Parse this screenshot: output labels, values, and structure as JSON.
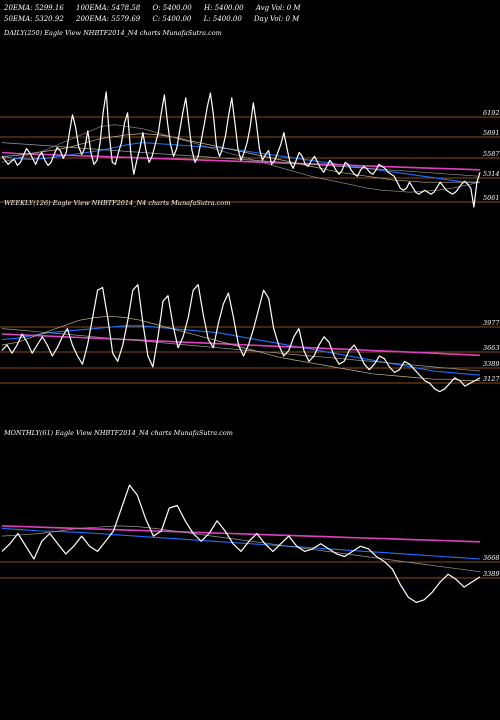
{
  "header": {
    "row1": [
      "20EMA: 5299.16",
      "100EMA: 5478.58",
      "O: 5400.00",
      "H: 5400.00",
      "Avg Vol: 0  M"
    ],
    "row2": [
      "50EMA: 5320.92",
      "200EMA: 5579.69",
      "C: 5400.00",
      "L: 5400.00",
      "Day Vol: 0  M"
    ]
  },
  "colors": {
    "background": "#000000",
    "price": "#ffffff",
    "level": "#b5651d",
    "ema_blue": "#1e6fff",
    "ema_magenta": "#e040c0",
    "ema_grey": "#9a9a9a",
    "ema_tan": "#c8b48c"
  },
  "chart_data": [
    {
      "type": "line",
      "title": "DAILY(250) Eagle  View  NHBTF2014_N4  charts MunafaSutra.com",
      "levels": [
        "6192",
        "5891",
        "5587",
        "5314",
        "5061"
      ],
      "series": [
        {
          "values": [
            5560,
            5520,
            5480,
            5510,
            5530,
            5470,
            5500,
            5570,
            5640,
            5600,
            5540,
            5480,
            5560,
            5600,
            5520,
            5470,
            5500,
            5580,
            5650,
            5620,
            5540,
            5600,
            5800,
            5980,
            5860,
            5660,
            5580,
            5640,
            5820,
            5600,
            5480,
            5520,
            5700,
            6000,
            6210,
            5780,
            5500,
            5480,
            5600,
            5700,
            5900,
            6000,
            5600,
            5380,
            5520,
            5640,
            5800,
            5620,
            5500,
            5560,
            5680,
            5800,
            6000,
            6180,
            5900,
            5680,
            5560,
            5640,
            5820,
            6000,
            6150,
            5880,
            5620,
            5500,
            5560,
            5720,
            5880,
            6060,
            6200,
            5980,
            5660,
            5560,
            5640,
            5780,
            5980,
            6150,
            5900,
            5640,
            5520,
            5600,
            5700,
            5860,
            6100,
            5900,
            5640,
            5520,
            5580,
            5620,
            5480,
            5520,
            5600,
            5680,
            5800,
            5640,
            5500,
            5440,
            5520,
            5600,
            5560,
            5480,
            5460,
            5520,
            5560,
            5500,
            5440,
            5400,
            5460,
            5520,
            5480,
            5420,
            5380,
            5420,
            5500,
            5480,
            5420,
            5380,
            5360,
            5420,
            5460,
            5440,
            5400,
            5380,
            5420,
            5480,
            5460,
            5440,
            5400,
            5380,
            5360,
            5300,
            5240,
            5220,
            5240,
            5300,
            5250,
            5200,
            5180,
            5200,
            5220,
            5200,
            5180,
            5200,
            5250,
            5300,
            5260,
            5220,
            5200,
            5180,
            5200,
            5240,
            5280,
            5310,
            5280,
            5240,
            5050,
            5300,
            5400
          ]
        },
        {
          "values": [
            5560,
            5540,
            5530,
            5540,
            5560,
            5580,
            5600,
            5620,
            5650,
            5680,
            5700,
            5690,
            5680,
            5670,
            5660,
            5650,
            5640,
            5620,
            5600,
            5580,
            5560,
            5540,
            5520,
            5500,
            5480,
            5460,
            5440,
            5420,
            5400,
            5380,
            5360,
            5340,
            5320,
            5300,
            5300
          ]
        },
        {
          "values": [
            5600,
            5590,
            5585,
            5580,
            5575,
            5570,
            5565,
            5560,
            5555,
            5550,
            5545,
            5540,
            5535,
            5530,
            5525,
            5520,
            5515,
            5510,
            5505,
            5500,
            5495,
            5490,
            5485,
            5480,
            5475,
            5470,
            5465,
            5460,
            5455,
            5450,
            5445,
            5440,
            5435,
            5430,
            5425
          ]
        },
        {
          "values": [
            5700,
            5690,
            5680,
            5670,
            5660,
            5650,
            5640,
            5630,
            5620,
            5610,
            5600,
            5590,
            5580,
            5570,
            5560,
            5550,
            5540,
            5530,
            5520,
            5510,
            5500,
            5490,
            5480,
            5470,
            5460,
            5450,
            5440,
            5430,
            5420,
            5410,
            5400,
            5390,
            5380,
            5370,
            5360
          ]
        },
        {
          "values": [
            5560,
            5570,
            5590,
            5610,
            5630,
            5660,
            5700,
            5740,
            5760,
            5780,
            5790,
            5780,
            5760,
            5730,
            5700,
            5670,
            5640,
            5610,
            5580,
            5550,
            5520,
            5490,
            5460,
            5430,
            5400,
            5380,
            5360,
            5340,
            5320,
            5310,
            5300,
            5300,
            5300,
            5300,
            5300
          ]
        },
        {
          "values": [
            5500,
            5540,
            5580,
            5620,
            5680,
            5740,
            5800,
            5860,
            5880,
            5860,
            5840,
            5800,
            5760,
            5720,
            5680,
            5640,
            5600,
            5560,
            5520,
            5480,
            5440,
            5400,
            5360,
            5330,
            5300,
            5270,
            5240,
            5220,
            5210,
            5200,
            5210,
            5220,
            5240,
            5270,
            5300
          ]
        }
      ]
    },
    {
      "type": "line",
      "title": "WEEKLY(126) Eagle  View  NHBTF2014_N4  charts MunafaSutra.com",
      "levels": [
        "3977",
        "3663",
        "3389",
        "3127"
      ],
      "series": [
        {
          "values": [
            3520,
            3560,
            3500,
            3560,
            3640,
            3580,
            3500,
            3560,
            3620,
            3560,
            3480,
            3540,
            3620,
            3680,
            3560,
            3480,
            3420,
            3560,
            3760,
            3960,
            3980,
            3760,
            3500,
            3440,
            3560,
            3740,
            3960,
            4000,
            3720,
            3480,
            3400,
            3620,
            3880,
            3920,
            3700,
            3540,
            3620,
            3760,
            3960,
            4000,
            3780,
            3600,
            3540,
            3720,
            3860,
            3940,
            3760,
            3560,
            3480,
            3560,
            3680,
            3820,
            3960,
            3900,
            3680,
            3560,
            3480,
            3520,
            3620,
            3680,
            3520,
            3440,
            3480,
            3560,
            3620,
            3580,
            3480,
            3420,
            3440,
            3520,
            3560,
            3500,
            3420,
            3380,
            3420,
            3480,
            3460,
            3400,
            3360,
            3380,
            3440,
            3420,
            3380,
            3340,
            3300,
            3280,
            3240,
            3220,
            3240,
            3280,
            3320,
            3300,
            3260,
            3280,
            3300,
            3320
          ]
        },
        {
          "values": [
            3600,
            3610,
            3630,
            3650,
            3660,
            3670,
            3680,
            3690,
            3700,
            3700,
            3690,
            3680,
            3670,
            3660,
            3650,
            3630,
            3610,
            3590,
            3570,
            3550,
            3530,
            3510,
            3490,
            3470,
            3450,
            3430,
            3410,
            3390,
            3370,
            3360,
            3350,
            3340
          ]
        },
        {
          "values": [
            3640,
            3635,
            3630,
            3625,
            3620,
            3615,
            3610,
            3605,
            3600,
            3595,
            3590,
            3585,
            3580,
            3575,
            3570,
            3565,
            3560,
            3555,
            3550,
            3545,
            3540,
            3535,
            3530,
            3525,
            3520,
            3515,
            3510,
            3505,
            3500,
            3495,
            3490,
            3485
          ]
        },
        {
          "values": [
            3680,
            3670,
            3660,
            3650,
            3640,
            3630,
            3620,
            3610,
            3600,
            3590,
            3580,
            3570,
            3560,
            3550,
            3540,
            3530,
            3520,
            3510,
            3500,
            3490,
            3480,
            3470,
            3460,
            3450,
            3440,
            3430,
            3420,
            3410,
            3400,
            3390,
            3380,
            3370
          ]
        },
        {
          "values": [
            3560,
            3580,
            3620,
            3660,
            3700,
            3740,
            3760,
            3770,
            3760,
            3740,
            3710,
            3680,
            3650,
            3620,
            3590,
            3560,
            3530,
            3500,
            3470,
            3450,
            3430,
            3410,
            3390,
            3370,
            3350,
            3340,
            3330,
            3320,
            3310,
            3310,
            3300,
            3300
          ]
        }
      ]
    },
    {
      "type": "line",
      "title": "MONTHLY(61) Eagle  View  NHBTF2014_N4  charts MunafaSutra.com",
      "levels": [
        "3668",
        "3389"
      ],
      "series": [
        {
          "values": [
            3560,
            3620,
            3700,
            3600,
            3500,
            3640,
            3700,
            3620,
            3540,
            3600,
            3680,
            3600,
            3560,
            3640,
            3720,
            3900,
            4080,
            4000,
            3820,
            3680,
            3720,
            3900,
            3920,
            3800,
            3700,
            3640,
            3700,
            3800,
            3720,
            3620,
            3560,
            3640,
            3700,
            3620,
            3560,
            3620,
            3680,
            3600,
            3560,
            3580,
            3620,
            3580,
            3540,
            3520,
            3560,
            3600,
            3580,
            3520,
            3480,
            3420,
            3300,
            3200,
            3160,
            3180,
            3240,
            3320,
            3380,
            3340,
            3280,
            3320,
            3360
          ]
        },
        {
          "values": [
            3740,
            3730,
            3720,
            3715,
            3710,
            3700,
            3690,
            3680,
            3670,
            3660,
            3650,
            3640,
            3630,
            3620,
            3610,
            3600,
            3590,
            3580,
            3570,
            3560,
            3550,
            3540,
            3530,
            3520,
            3510,
            3500
          ]
        },
        {
          "values": [
            3760,
            3755,
            3750,
            3745,
            3740,
            3735,
            3730,
            3725,
            3720,
            3715,
            3710,
            3705,
            3700,
            3695,
            3690,
            3685,
            3680,
            3675,
            3670,
            3665,
            3660,
            3655,
            3650,
            3645,
            3640,
            3635
          ]
        },
        {
          "values": [
            3680,
            3690,
            3700,
            3720,
            3740,
            3750,
            3760,
            3755,
            3740,
            3720,
            3700,
            3680,
            3660,
            3640,
            3620,
            3600,
            3580,
            3560,
            3540,
            3520,
            3500,
            3480,
            3460,
            3440,
            3420,
            3400
          ]
        }
      ]
    }
  ]
}
